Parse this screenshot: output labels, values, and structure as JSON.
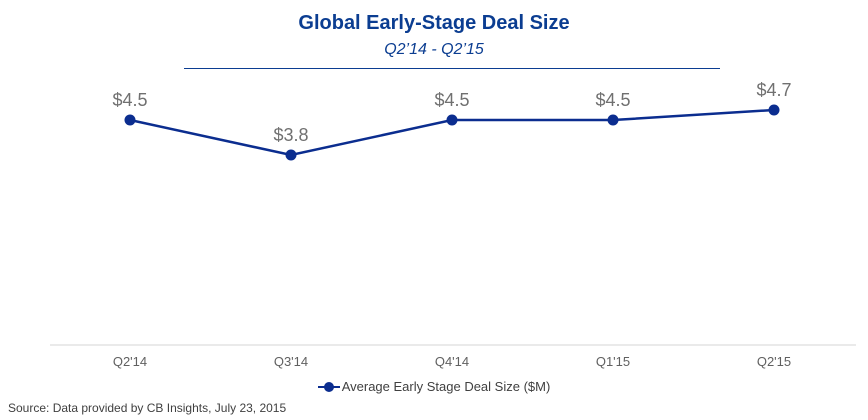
{
  "chart_data": {
    "type": "line",
    "title": "Global Early-Stage Deal Size",
    "subtitle": "Q2’14 - Q2’15",
    "categories": [
      "Q2'14",
      "Q3'14",
      "Q4'14",
      "Q1'15",
      "Q2'15"
    ],
    "series": [
      {
        "name": "Average Early Stage Deal Size ($M)",
        "values": [
          4.5,
          3.8,
          4.5,
          4.5,
          4.7
        ],
        "labels": [
          "$4.5",
          "$3.8",
          "$4.5",
          "$4.5",
          "$4.7"
        ],
        "color": "#0b2d8f"
      }
    ],
    "xlabel": "",
    "ylabel": "",
    "ylim": [
      0,
      6.5
    ],
    "grid": false,
    "legend": "bottom-center"
  },
  "source": "Source: Data provided by CB Insights, July 23, 2015",
  "colors": {
    "title": "#0b3d91",
    "series": "#0b2d8f"
  }
}
